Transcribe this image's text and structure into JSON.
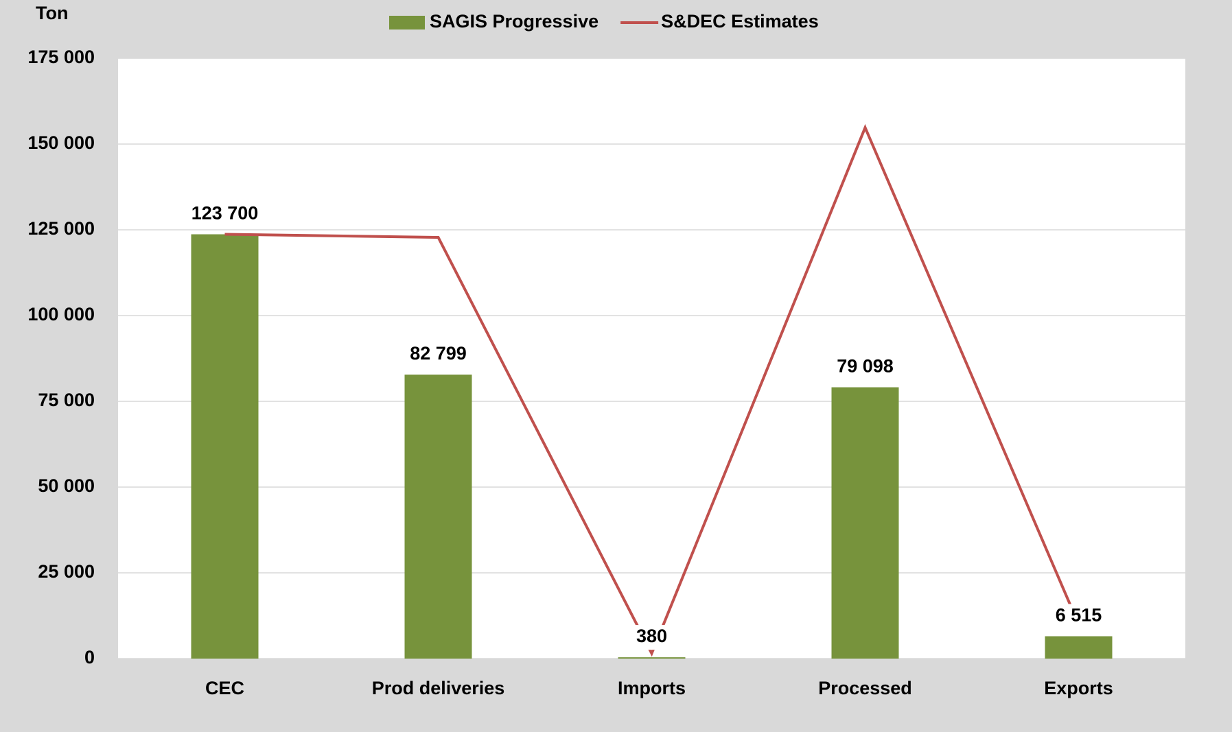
{
  "chart_data": {
    "type": "bar_line",
    "y_label": "Ton",
    "categories": [
      "CEC",
      "Prod deliveries",
      "Imports",
      "Processed",
      "Exports"
    ],
    "series": [
      {
        "name": "SAGIS Progressive",
        "type": "bar",
        "color": "#77933c",
        "values": [
          123700,
          82799,
          380,
          79098,
          6515
        ],
        "value_labels": [
          "123 700",
          "82 799",
          "380",
          "79 098",
          "6 515"
        ]
      },
      {
        "name": "S&DEC Estimates",
        "type": "line",
        "color": "#c0504d",
        "values": [
          123700,
          122800,
          1500,
          154800,
          10000
        ]
      }
    ],
    "ylim": [
      0,
      175000
    ],
    "yticks": [
      0,
      {
        "value": 25000,
        "label": "25 000"
      },
      {
        "value": 50000,
        "label": "50 000"
      },
      {
        "value": 75000,
        "label": "75 000"
      },
      {
        "value": 100000,
        "label": "100 000"
      },
      {
        "value": 125000,
        "label": "125 000"
      },
      {
        "value": 150000,
        "label": "150 000"
      },
      {
        "value": 175000,
        "label": "175 000"
      }
    ],
    "grid": true,
    "legend": "top"
  }
}
